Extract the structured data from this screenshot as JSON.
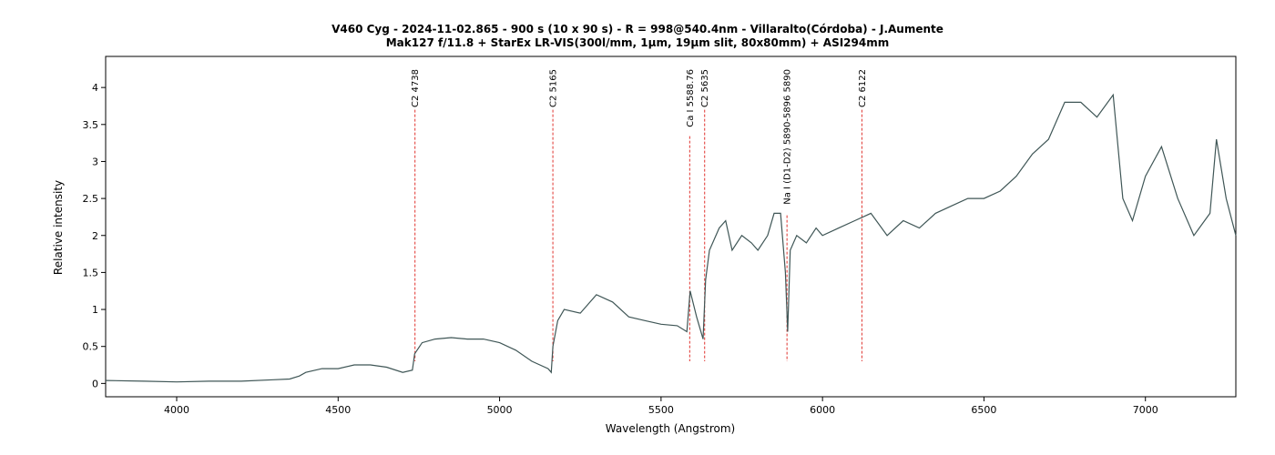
{
  "chart_data": {
    "type": "line",
    "title": "V460 Cyg - 2024-11-02.865 - 900 s (10 x 90 s) - R = 998@540.4nm - Villaralto(Córdoba) - J.Aumente",
    "subtitle": "Mak127 f/11.8 + StarEx LR-VIS(300l/mm, 1µm, 19µm slit, 80x80mm) + ASI294mm",
    "xlabel": "Wavelength (Angstrom)",
    "ylabel": "Relative intensity",
    "xlim": [
      3780,
      7280
    ],
    "ylim": [
      -0.18,
      4.42
    ],
    "x_ticks": [
      "4000",
      "4500",
      "5000",
      "5500",
      "6000",
      "6500",
      "7000"
    ],
    "y_ticks": [
      "0",
      "0.5",
      "1",
      "1.5",
      "2",
      "2.5",
      "3",
      "3.5",
      "4"
    ],
    "grid": false,
    "legend": "none",
    "line_color": "#3f5656",
    "marker_color": "#e0332e",
    "series": [
      {
        "x": [
          3780,
          3900,
          4000,
          4100,
          4200,
          4300,
          4350,
          4380,
          4400,
          4450,
          4500,
          4550,
          4600,
          4650,
          4700,
          4730,
          4737,
          4760,
          4800,
          4850,
          4900,
          4950,
          5000,
          5050,
          5100,
          5150,
          5160,
          5165,
          5180,
          5200,
          5250,
          5300,
          5350,
          5400,
          5450,
          5500,
          5550,
          5580,
          5590,
          5610,
          5630,
          5638,
          5650,
          5680,
          5700,
          5720,
          5750,
          5780,
          5800,
          5830,
          5850,
          5870,
          5885,
          5892,
          5900,
          5920,
          5950,
          5980,
          6000,
          6050,
          6100,
          6150,
          6200,
          6250,
          6300,
          6350,
          6400,
          6450,
          6500,
          6550,
          6600,
          6650,
          6700,
          6750,
          6800,
          6850,
          6900,
          6930,
          6960,
          7000,
          7050,
          7100,
          7150,
          7200,
          7220,
          7250,
          7280
        ],
        "y": [
          0.04,
          0.03,
          0.02,
          0.03,
          0.03,
          0.05,
          0.06,
          0.1,
          0.15,
          0.2,
          0.2,
          0.25,
          0.25,
          0.22,
          0.15,
          0.18,
          0.4,
          0.55,
          0.6,
          0.62,
          0.6,
          0.6,
          0.55,
          0.45,
          0.3,
          0.2,
          0.15,
          0.5,
          0.85,
          1.0,
          0.95,
          1.2,
          1.1,
          0.9,
          0.85,
          0.8,
          0.78,
          0.7,
          1.25,
          0.9,
          0.6,
          1.4,
          1.8,
          2.1,
          2.2,
          1.8,
          2.0,
          1.9,
          1.8,
          2.0,
          2.3,
          2.3,
          1.5,
          0.7,
          1.8,
          2.0,
          1.9,
          2.1,
          2.0,
          2.1,
          2.2,
          2.3,
          2.0,
          2.2,
          2.1,
          2.3,
          2.4,
          2.5,
          2.5,
          2.6,
          2.8,
          3.1,
          3.3,
          3.8,
          3.8,
          3.6,
          3.9,
          2.5,
          2.2,
          2.8,
          3.2,
          2.5,
          2.0,
          2.3,
          3.3,
          2.5,
          2.0
        ]
      }
    ],
    "lines": [
      {
        "x": 4738,
        "label": "C2 4738"
      },
      {
        "x": 5165,
        "label": "C2 5165"
      },
      {
        "x": 5588.76,
        "label": "Ca I 5588.76"
      },
      {
        "x": 5635,
        "label": "C2 5635"
      },
      {
        "x": 5890,
        "label": "Na I (D1-D2) 5890-5896 5890"
      },
      {
        "x": 6122,
        "label": "C2 6122"
      }
    ]
  }
}
